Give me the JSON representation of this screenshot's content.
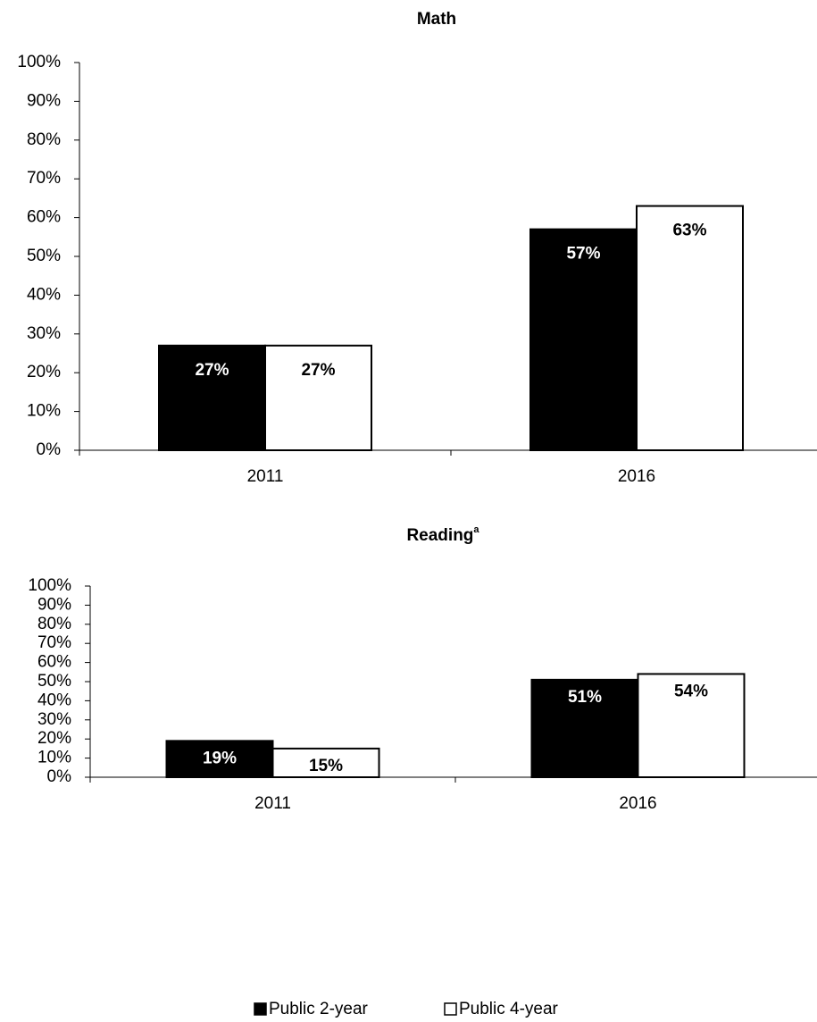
{
  "chart_data": [
    {
      "type": "bar",
      "title": "Math",
      "categories": [
        "2011",
        "2016"
      ],
      "series": [
        {
          "color": "#000000",
          "values": [
            27,
            57
          ],
          "value_labels": [
            "27%",
            "57%"
          ]
        },
        {
          "color": "#ffffff",
          "values": [
            27,
            63
          ],
          "value_labels": [
            "27%",
            "63%"
          ]
        }
      ],
      "ylim": [
        0,
        100
      ],
      "yticks": [
        {
          "value": 0,
          "label": "0%"
        },
        {
          "value": 10,
          "label": "10%"
        },
        {
          "value": 20,
          "label": "20%"
        },
        {
          "value": 30,
          "label": "30%"
        },
        {
          "value": 40,
          "label": "40%"
        },
        {
          "value": 50,
          "label": "50%"
        },
        {
          "value": 60,
          "label": "60%"
        },
        {
          "value": 70,
          "label": "70%"
        },
        {
          "value": 80,
          "label": "80%"
        },
        {
          "value": 90,
          "label": "90%"
        },
        {
          "value": 100,
          "label": "100%"
        }
      ]
    },
    {
      "type": "bar",
      "title": "Reading",
      "title_note": "a",
      "categories": [
        "2011",
        "2016"
      ],
      "series": [
        {
          "name": "Public 2-year",
          "color": "#000000",
          "values": [
            19,
            51
          ],
          "value_labels": [
            "19%",
            "51%"
          ]
        },
        {
          "name": "Public 4-year",
          "color": "#ffffff",
          "values": [
            15,
            54
          ],
          "value_labels": [
            "15%",
            "54%"
          ]
        }
      ],
      "ylim": [
        0,
        100
      ],
      "yticks": [
        {
          "value": 0,
          "label": "0%"
        },
        {
          "value": 10,
          "label": "10%"
        },
        {
          "value": 20,
          "label": "20%"
        },
        {
          "value": 30,
          "label": "30%"
        },
        {
          "value": 40,
          "label": "40%"
        },
        {
          "value": 50,
          "label": "50%"
        },
        {
          "value": 60,
          "label": "60%"
        },
        {
          "value": 70,
          "label": "70%"
        },
        {
          "value": 80,
          "label": "80%"
        },
        {
          "value": 90,
          "label": "90%"
        },
        {
          "value": 100,
          "label": "100%"
        }
      ],
      "legend": "bottom"
    }
  ]
}
